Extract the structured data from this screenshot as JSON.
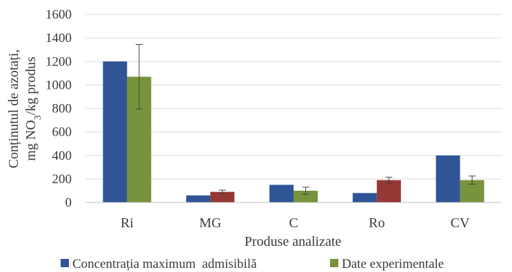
{
  "chart_data": {
    "type": "bar",
    "xlabel": "Produse analizate",
    "ylabel_line1": "Conținutul de azotați,",
    "ylabel_line2_prefix": "mg NO",
    "ylabel_line2_sub": "3",
    "ylabel_line2_suffix": "/kg produs",
    "ylim": [
      0,
      1600
    ],
    "ytick_step": 200,
    "yticks": [
      "0",
      "200",
      "400",
      "600",
      "800",
      "1000",
      "1200",
      "1400",
      "1600"
    ],
    "grid": true,
    "legend_position": "bottom",
    "categories": [
      "Ri",
      "MG",
      "C",
      "Ro",
      "CV"
    ],
    "series": [
      {
        "name": "Concentrația maximum  admisibilă",
        "color": "#2f5597",
        "values": [
          1200,
          60,
          150,
          80,
          400
        ],
        "errors": [
          null,
          null,
          null,
          null,
          null
        ]
      },
      {
        "name": "Date experimentale",
        "color": "#77933c",
        "values": [
          1070,
          90,
          100,
          190,
          190
        ],
        "errors": [
          275,
          15,
          30,
          25,
          35
        ],
        "point_colors": [
          "#77933c",
          "#953735",
          "#77933c",
          "#953735",
          "#77933c"
        ]
      }
    ]
  }
}
